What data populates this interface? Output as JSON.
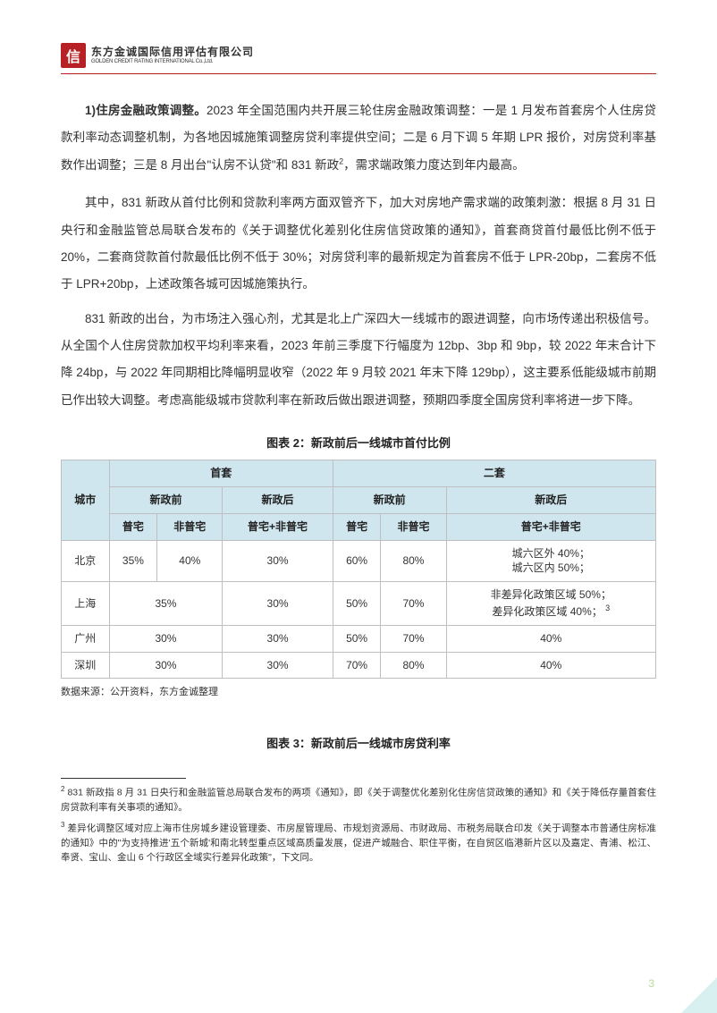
{
  "logo": {
    "mark": "信",
    "company_cn": "东方金诚国际信用评估有限公司",
    "company_en": "GOLDEN CREDIT RATING INTERNATIONAL Co.,Ltd."
  },
  "paragraphs": {
    "p1_lead": "1)住房金融政策调整。",
    "p1": "2023 年全国范围内共开展三轮住房金融政策调整：一是 1 月发布首套房个人住房贷款利率动态调整机制，为各地因城施策调整房贷利率提供空间；二是 6 月下调 5 年期 LPR 报价，对房贷利率基数作出调整；三是 8 月出台\"认房不认贷\"和 831 新政",
    "p1_sup": "2",
    "p1_tail": "，需求端政策力度达到年内最高。",
    "p2": "其中，831 新政从首付比例和贷款利率两方面双管齐下，加大对房地产需求端的政策刺激：根据 8 月 31 日央行和金融监管总局联合发布的《关于调整优化差别化住房信贷政策的通知》，首套商贷首付最低比例不低于 20%，二套商贷款首付款最低比例不低于 30%；对房贷利率的最新规定为首套房不低于 LPR-20bp，二套房不低于 LPR+20bp，上述政策各城可因城施策执行。",
    "p3": "831 新政的出台，为市场注入强心剂，尤其是北上广深四大一线城市的跟进调整，向市场传递出积极信号。从全国个人住房贷款加权平均利率来看，2023 年前三季度下行幅度为 12bp、3bp 和 9bp，较 2022 年末合计下降 24bp，与 2022 年同期相比降幅明显收窄（2022 年 9 月较 2021 年末下降 129bp），这主要系低能级城市前期已作出较大调整。考虑高能级城市贷款利率在新政后做出跟进调整，预期四季度全国房贷利率将进一步下降。"
  },
  "table2": {
    "caption": "图表 2：新政前后一线城市首付比例",
    "headers": {
      "city": "城市",
      "first": "首套",
      "second": "二套",
      "before": "新政前",
      "after": "新政后",
      "normal": "普宅",
      "abnormal": "非普宅",
      "both": "普宅+非普宅"
    },
    "rows": [
      {
        "city": "北京",
        "f_before_n": "35%",
        "f_before_a": "40%",
        "f_after": "30%",
        "s_before_n": "60%",
        "s_before_a": "80%",
        "s_after": "城六区外 40%；\n城六区内 50%；",
        "merge_f_before": false
      },
      {
        "city": "上海",
        "f_before_n": "35%",
        "f_before_a": "",
        "f_after": "30%",
        "s_before_n": "50%",
        "s_before_a": "70%",
        "s_after": "非差异化政策区域 50%；\n差异化政策区域 40%；",
        "s_after_sup": "3",
        "merge_f_before": true
      },
      {
        "city": "广州",
        "f_before_n": "30%",
        "f_before_a": "",
        "f_after": "30%",
        "s_before_n": "50%",
        "s_before_a": "70%",
        "s_after": "40%",
        "merge_f_before": true
      },
      {
        "city": "深圳",
        "f_before_n": "30%",
        "f_before_a": "",
        "f_after": "30%",
        "s_before_n": "70%",
        "s_before_a": "80%",
        "s_after": "40%",
        "merge_f_before": true
      }
    ],
    "source": "数据来源：公开资料，东方金诚整理",
    "colors": {
      "header_bg": "#cfe6ee",
      "border": "#bfbfbf"
    }
  },
  "caption3": "图表 3：新政前后一线城市房贷利率",
  "footnotes": {
    "f2_sup": "2",
    "f2": " 831 新政指 8 月 31 日央行和金融监管总局联合发布的两项《通知》，即《关于调整优化差别化住房信贷政策的通知》和《关于降低存量首套住房贷款利率有关事项的通知》。",
    "f3_sup": "3",
    "f3": " 差异化调整区域对应上海市住房城乡建设管理委、市房屋管理局、市规划资源局、市财政局、市税务局联合印发《关于调整本市普通住房标准的通知》中的\"为支持推进'五个新城'和南北转型重点区域高质量发展，促进产城融合、职住平衡，在自贸区临港新片区以及嘉定、青浦、松江、奉贤、宝山、金山 6 个行政区全域实行差异化政策\"，下文同。"
  },
  "page_number": "3"
}
